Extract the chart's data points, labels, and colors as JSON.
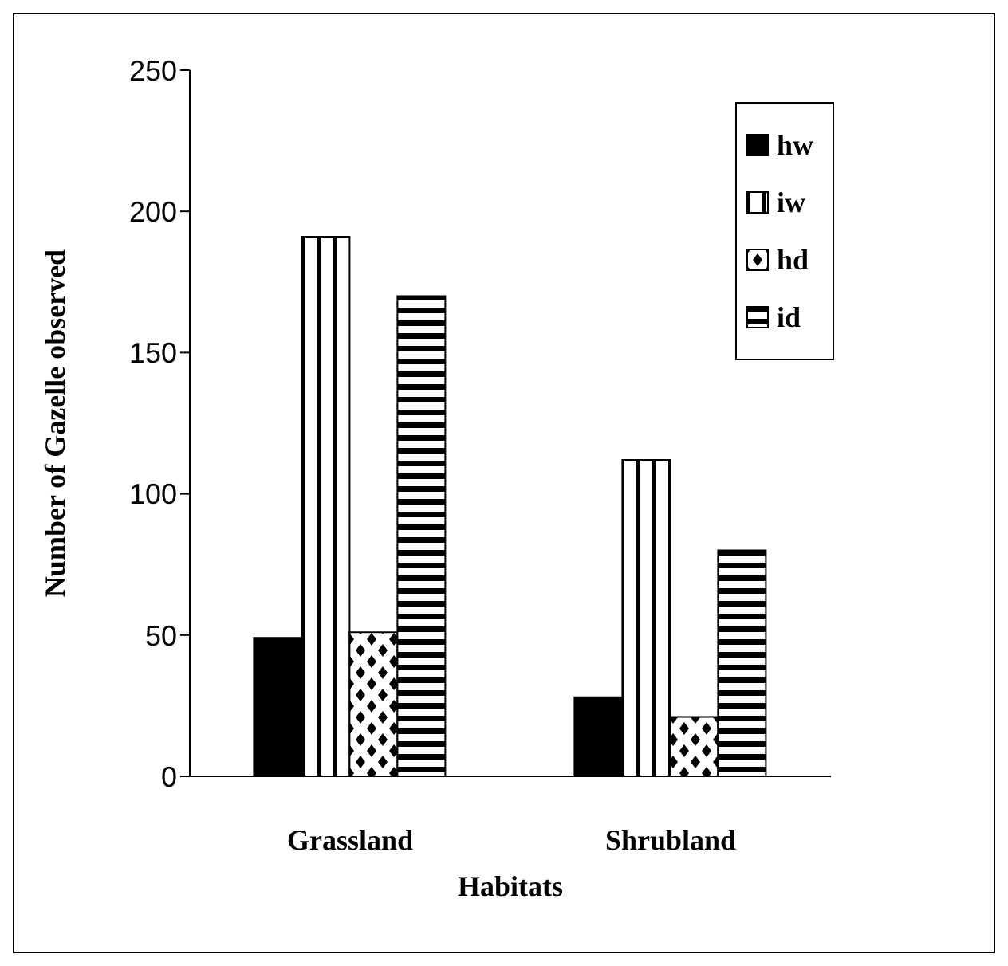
{
  "chart_data": {
    "type": "bar",
    "xlabel": "Habitats",
    "ylabel": "Number of Gazelle observed",
    "categories": [
      "Grassland",
      "Shrubland"
    ],
    "series": [
      {
        "name": "hw",
        "color": "#000000",
        "values": [
          49,
          28
        ]
      },
      {
        "name": "iw",
        "color": "#000000",
        "values": [
          191,
          112
        ]
      },
      {
        "name": "hd",
        "color": "#000000",
        "values": [
          51,
          21
        ]
      },
      {
        "name": "id",
        "color": "#000000",
        "values": [
          170,
          80
        ]
      }
    ],
    "ylim": [
      0,
      250
    ],
    "yticks": [
      0,
      50,
      100,
      150,
      200,
      250
    ],
    "grid": false,
    "legend": "top right"
  }
}
